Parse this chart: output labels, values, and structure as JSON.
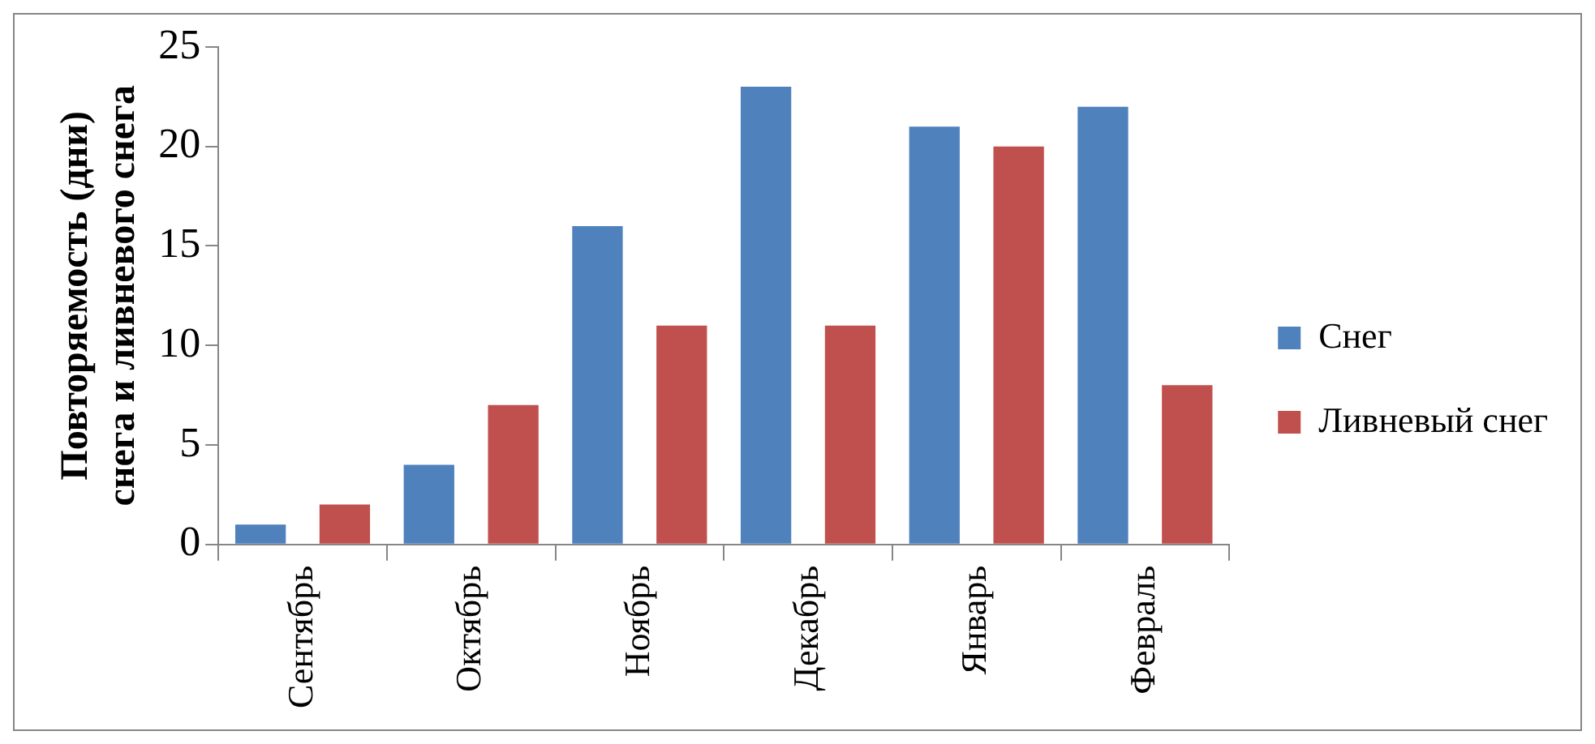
{
  "chart_data": {
    "type": "bar",
    "ylabel": "Повторяемость (дни)\nснега и ливневого снега",
    "categories": [
      "Сентябрь",
      "Октябрь",
      "Ноябрь",
      "Декабрь",
      "Январь",
      "Февраль"
    ],
    "series": [
      {
        "name": "Снег",
        "color": "#4f81bd",
        "values": [
          1,
          4,
          16,
          23,
          21,
          22
        ]
      },
      {
        "name": "Ливневый снег",
        "color": "#c0504d",
        "values": [
          2,
          7,
          11,
          11,
          20,
          8
        ]
      }
    ],
    "ylim": [
      0,
      25
    ],
    "yticks": [
      0,
      5,
      10,
      15,
      20,
      25
    ],
    "grid": false,
    "legend": "right"
  }
}
